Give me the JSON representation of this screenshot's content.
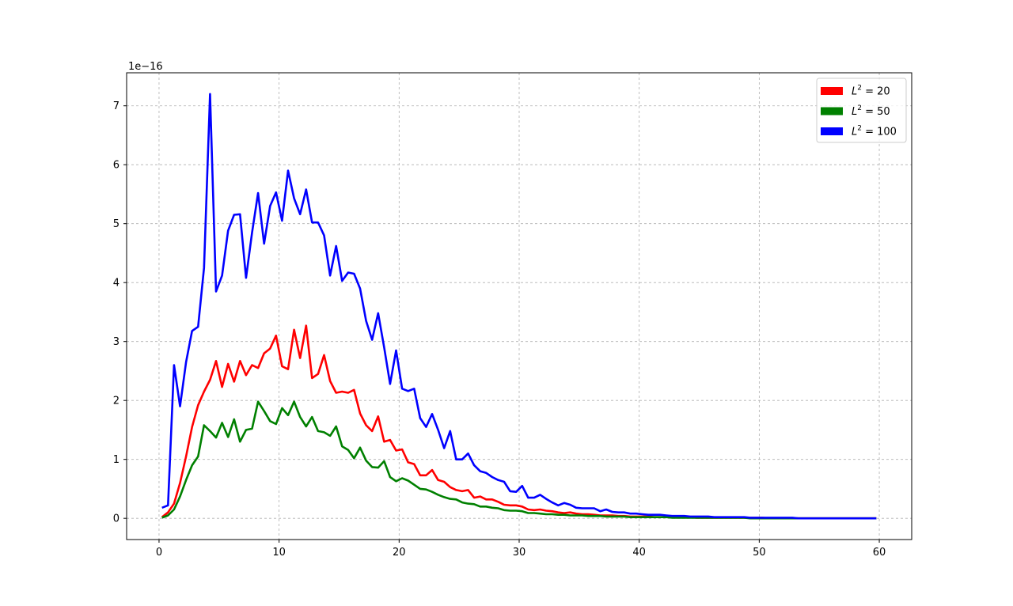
{
  "chart_data": {
    "type": "line",
    "title": "",
    "xlabel": "",
    "ylabel": "",
    "offset_text": "1e−16",
    "xlim": [
      -2.7,
      62.7
    ],
    "ylim": [
      -0.36,
      7.56
    ],
    "xticks": [
      0,
      10,
      20,
      30,
      40,
      50,
      60
    ],
    "xtick_labels": [
      "0",
      "10",
      "20",
      "30",
      "40",
      "50",
      "60"
    ],
    "yticks": [
      0,
      1,
      2,
      3,
      4,
      5,
      6,
      7
    ],
    "ytick_labels": [
      "0",
      "1",
      "2",
      "3",
      "4",
      "5",
      "6",
      "7"
    ],
    "grid": true,
    "legend_position": "top-right",
    "series": [
      {
        "name": "L² = 20",
        "legend_base": "L",
        "legend_sup": "2",
        "legend_rest": " = 20",
        "color": "#ff0000",
        "x": [
          0.25,
          0.75,
          1.25,
          1.75,
          2.25,
          2.75,
          3.25,
          3.75,
          4.25,
          4.75,
          5.25,
          5.75,
          6.25,
          6.75,
          7.25,
          7.75,
          8.25,
          8.75,
          9.25,
          9.75,
          10.25,
          10.75,
          11.25,
          11.75,
          12.25,
          12.75,
          13.25,
          13.75,
          14.25,
          14.75,
          15.25,
          15.75,
          16.25,
          16.75,
          17.25,
          17.75,
          18.25,
          18.75,
          19.25,
          19.75,
          20.25,
          20.75,
          21.25,
          21.75,
          22.25,
          22.75,
          23.25,
          23.75,
          24.25,
          24.75,
          25.25,
          25.75,
          26.25,
          26.75,
          27.25,
          27.75,
          28.25,
          28.75,
          29.25,
          29.75,
          30.25,
          30.75,
          31.25,
          31.75,
          32.25,
          32.75,
          33.25,
          33.75,
          34.25,
          34.75,
          35.25,
          35.75,
          36.25,
          36.75,
          37.25,
          37.75,
          38.25,
          38.75,
          39.25,
          39.75,
          40.25,
          40.75,
          41.25,
          41.75,
          42.25,
          42.75,
          43.25,
          43.75,
          44.25,
          44.75,
          45.25,
          45.75,
          46.25,
          46.75,
          47.25,
          47.75,
          48.25,
          48.75,
          49.25,
          49.75,
          50.25,
          50.75,
          51.25,
          51.75,
          52.25,
          52.75,
          53.25,
          53.75,
          54.25,
          54.75,
          55.25,
          55.75,
          56.25,
          56.75,
          57.25,
          57.75,
          58.25,
          58.75,
          59.25,
          59.75
        ],
        "values": [
          0.02,
          0.1,
          0.25,
          0.6,
          1.05,
          1.55,
          1.92,
          2.15,
          2.35,
          2.67,
          2.23,
          2.62,
          2.32,
          2.67,
          2.43,
          2.6,
          2.55,
          2.8,
          2.88,
          3.1,
          2.58,
          2.53,
          3.2,
          2.72,
          3.27,
          2.38,
          2.45,
          2.77,
          2.33,
          2.13,
          2.15,
          2.13,
          2.18,
          1.78,
          1.58,
          1.48,
          1.73,
          1.3,
          1.33,
          1.15,
          1.17,
          0.95,
          0.92,
          0.73,
          0.73,
          0.82,
          0.65,
          0.62,
          0.53,
          0.48,
          0.46,
          0.48,
          0.35,
          0.37,
          0.32,
          0.32,
          0.28,
          0.23,
          0.22,
          0.22,
          0.2,
          0.15,
          0.14,
          0.15,
          0.13,
          0.12,
          0.1,
          0.09,
          0.1,
          0.08,
          0.07,
          0.07,
          0.06,
          0.05,
          0.05,
          0.05,
          0.04,
          0.04,
          0.03,
          0.03,
          0.03,
          0.03,
          0.02,
          0.02,
          0.02,
          0.02,
          0.02,
          0.02,
          0.02,
          0.01,
          0.01,
          0.01,
          0.01,
          0.01,
          0.01,
          0.01,
          0.01,
          0.01,
          0.01,
          0.01,
          0.01,
          0.0,
          0.0,
          0.0,
          0.0,
          0.0,
          0.0,
          0.0,
          0.0,
          0.0,
          0.0,
          0.0,
          0.0,
          0.0,
          0.0,
          0.0,
          0.0,
          0.0,
          0.0,
          0.0
        ]
      },
      {
        "name": "L² = 50",
        "legend_base": "L",
        "legend_sup": "2",
        "legend_rest": " = 50",
        "color": "#008000",
        "x": [
          0.25,
          0.75,
          1.25,
          1.75,
          2.25,
          2.75,
          3.25,
          3.75,
          4.25,
          4.75,
          5.25,
          5.75,
          6.25,
          6.75,
          7.25,
          7.75,
          8.25,
          8.75,
          9.25,
          9.75,
          10.25,
          10.75,
          11.25,
          11.75,
          12.25,
          12.75,
          13.25,
          13.75,
          14.25,
          14.75,
          15.25,
          15.75,
          16.25,
          16.75,
          17.25,
          17.75,
          18.25,
          18.75,
          19.25,
          19.75,
          20.25,
          20.75,
          21.25,
          21.75,
          22.25,
          22.75,
          23.25,
          23.75,
          24.25,
          24.75,
          25.25,
          25.75,
          26.25,
          26.75,
          27.25,
          27.75,
          28.25,
          28.75,
          29.25,
          29.75,
          30.25,
          30.75,
          31.25,
          31.75,
          32.25,
          32.75,
          33.25,
          33.75,
          34.25,
          34.75,
          35.25,
          35.75,
          36.25,
          36.75,
          37.25,
          37.75,
          38.25,
          38.75,
          39.25,
          39.75,
          40.25,
          40.75,
          41.25,
          41.75,
          42.25,
          42.75,
          43.25,
          43.75,
          44.25,
          44.75,
          45.25,
          45.75,
          46.25,
          46.75,
          47.25,
          47.75,
          48.25,
          48.75,
          49.25,
          49.75,
          50.25,
          50.75,
          51.25,
          51.75,
          52.25,
          52.75,
          53.25,
          53.75,
          54.25,
          54.75,
          55.25,
          55.75,
          56.25,
          56.75,
          57.25,
          57.75,
          58.25,
          58.75,
          59.25,
          59.75
        ],
        "values": [
          0.01,
          0.05,
          0.15,
          0.37,
          0.65,
          0.9,
          1.05,
          1.58,
          1.48,
          1.37,
          1.62,
          1.38,
          1.68,
          1.3,
          1.5,
          1.52,
          1.98,
          1.82,
          1.65,
          1.6,
          1.87,
          1.75,
          1.98,
          1.72,
          1.56,
          1.72,
          1.48,
          1.46,
          1.4,
          1.56,
          1.22,
          1.16,
          1.02,
          1.2,
          0.98,
          0.87,
          0.86,
          0.97,
          0.7,
          0.63,
          0.68,
          0.64,
          0.57,
          0.5,
          0.49,
          0.45,
          0.4,
          0.36,
          0.33,
          0.32,
          0.27,
          0.25,
          0.24,
          0.2,
          0.2,
          0.18,
          0.17,
          0.14,
          0.13,
          0.13,
          0.12,
          0.09,
          0.09,
          0.08,
          0.07,
          0.07,
          0.06,
          0.06,
          0.05,
          0.05,
          0.05,
          0.04,
          0.04,
          0.04,
          0.03,
          0.03,
          0.03,
          0.03,
          0.02,
          0.02,
          0.02,
          0.02,
          0.02,
          0.02,
          0.02,
          0.01,
          0.01,
          0.01,
          0.01,
          0.01,
          0.01,
          0.01,
          0.01,
          0.01,
          0.01,
          0.01,
          0.01,
          0.01,
          0.0,
          0.0,
          0.0,
          0.0,
          0.0,
          0.0,
          0.0,
          0.0,
          0.0,
          0.0,
          0.0,
          0.0,
          0.0,
          0.0,
          0.0,
          0.0,
          0.0,
          0.0,
          0.0,
          0.0,
          0.0,
          0.0
        ]
      },
      {
        "name": "L² = 100",
        "legend_base": "L",
        "legend_sup": "2",
        "legend_rest": " = 100",
        "color": "#0000ff",
        "x": [
          0.25,
          0.75,
          1.25,
          1.75,
          2.25,
          2.75,
          3.25,
          3.75,
          4.25,
          4.75,
          5.25,
          5.75,
          6.25,
          6.75,
          7.25,
          7.75,
          8.25,
          8.75,
          9.25,
          9.75,
          10.25,
          10.75,
          11.25,
          11.75,
          12.25,
          12.75,
          13.25,
          13.75,
          14.25,
          14.75,
          15.25,
          15.75,
          16.25,
          16.75,
          17.25,
          17.75,
          18.25,
          18.75,
          19.25,
          19.75,
          20.25,
          20.75,
          21.25,
          21.75,
          22.25,
          22.75,
          23.25,
          23.75,
          24.25,
          24.75,
          25.25,
          25.75,
          26.25,
          26.75,
          27.25,
          27.75,
          28.25,
          28.75,
          29.25,
          29.75,
          30.25,
          30.75,
          31.25,
          31.75,
          32.25,
          32.75,
          33.25,
          33.75,
          34.25,
          34.75,
          35.25,
          35.75,
          36.25,
          36.75,
          37.25,
          37.75,
          38.25,
          38.75,
          39.25,
          39.75,
          40.25,
          40.75,
          41.25,
          41.75,
          42.25,
          42.75,
          43.25,
          43.75,
          44.25,
          44.75,
          45.25,
          45.75,
          46.25,
          46.75,
          47.25,
          47.75,
          48.25,
          48.75,
          49.25,
          49.75,
          50.25,
          50.75,
          51.25,
          51.75,
          52.25,
          52.75,
          53.25,
          53.75,
          54.25,
          54.75,
          55.25,
          55.75,
          56.25,
          56.75,
          57.25,
          57.75,
          58.25,
          58.75,
          59.25,
          59.75
        ],
        "values": [
          0.18,
          0.22,
          2.6,
          1.9,
          2.65,
          3.18,
          3.25,
          4.25,
          7.2,
          3.85,
          4.12,
          4.88,
          5.15,
          5.16,
          4.08,
          4.85,
          5.52,
          4.66,
          5.3,
          5.53,
          5.05,
          5.9,
          5.43,
          5.16,
          5.58,
          5.02,
          5.02,
          4.8,
          4.12,
          4.62,
          4.03,
          4.17,
          4.15,
          3.9,
          3.35,
          3.03,
          3.48,
          2.9,
          2.28,
          2.85,
          2.2,
          2.16,
          2.2,
          1.7,
          1.55,
          1.77,
          1.5,
          1.19,
          1.48,
          1.0,
          1.0,
          1.1,
          0.9,
          0.8,
          0.77,
          0.7,
          0.65,
          0.62,
          0.46,
          0.45,
          0.55,
          0.35,
          0.35,
          0.4,
          0.33,
          0.27,
          0.22,
          0.26,
          0.23,
          0.18,
          0.17,
          0.17,
          0.17,
          0.12,
          0.15,
          0.11,
          0.1,
          0.1,
          0.08,
          0.08,
          0.07,
          0.06,
          0.06,
          0.06,
          0.05,
          0.04,
          0.04,
          0.04,
          0.03,
          0.03,
          0.03,
          0.03,
          0.02,
          0.02,
          0.02,
          0.02,
          0.02,
          0.02,
          0.01,
          0.01,
          0.01,
          0.01,
          0.01,
          0.01,
          0.01,
          0.01,
          0.0,
          0.0,
          0.0,
          0.0,
          0.0,
          0.0,
          0.0,
          0.0,
          0.0,
          0.0,
          0.0,
          0.0,
          0.0,
          0.0
        ]
      }
    ]
  }
}
